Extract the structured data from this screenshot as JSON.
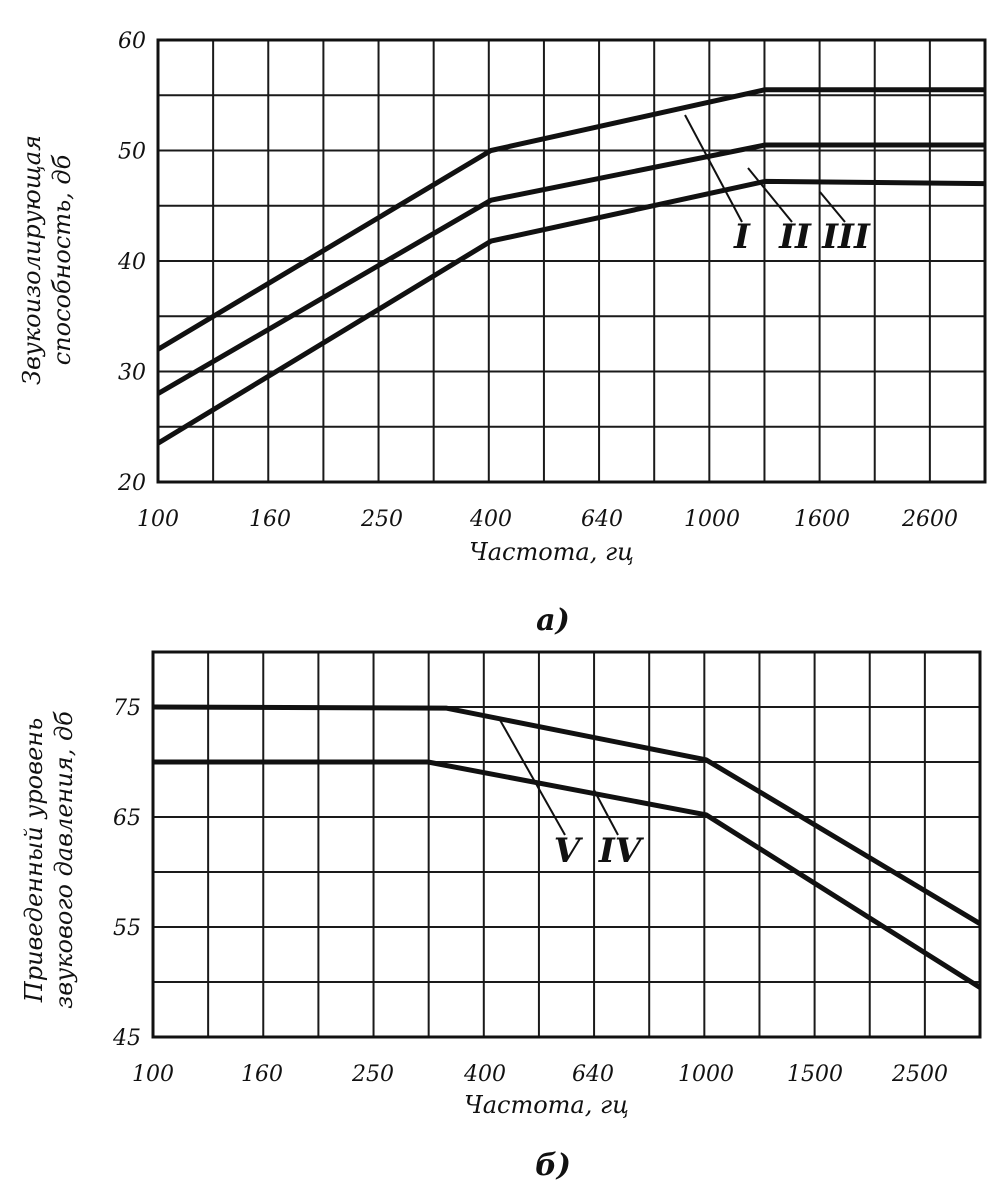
{
  "chart_data": [
    {
      "type": "line",
      "panel_label": "а)",
      "x_ticks": [
        "100",
        "160",
        "250",
        "400",
        "640",
        "1000",
        "1600",
        "2600"
      ],
      "y_ticks": [
        "20",
        "30",
        "40",
        "50",
        "60"
      ],
      "xlabel": "Частота, гц",
      "ylabel_lines": [
        "Звукоизолирующая",
        "способность, дб"
      ],
      "ylim": [
        20,
        60
      ],
      "grid": true,
      "series": [
        {
          "name": "I",
          "x": [
            100,
            400,
            1250,
            3200
          ],
          "values": [
            32,
            50,
            55.5,
            55.5
          ]
        },
        {
          "name": "II",
          "x": [
            100,
            400,
            1250,
            3200
          ],
          "values": [
            28,
            45.5,
            50.5,
            50.5
          ]
        },
        {
          "name": "III",
          "x": [
            100,
            400,
            1250,
            3200
          ],
          "values": [
            23.5,
            41.8,
            47.2,
            47
          ]
        }
      ]
    },
    {
      "type": "line",
      "panel_label": "б)",
      "x_ticks": [
        "100",
        "160",
        "250",
        "400",
        "640",
        "1000",
        "1500",
        "2500"
      ],
      "y_ticks": [
        "45",
        "55",
        "65",
        "75"
      ],
      "xlabel": "Частота, гц",
      "ylabel_lines": [
        "Приведенный уровень",
        "звукового давления, дб"
      ],
      "ylim": [
        45,
        80
      ],
      "grid": true,
      "series": [
        {
          "name": "V",
          "x": [
            100,
            350,
            1000,
            3000
          ],
          "values": [
            75,
            74.9,
            70.2,
            55.3
          ]
        },
        {
          "name": "IV",
          "x": [
            100,
            315,
            1000,
            3000
          ],
          "values": [
            70,
            70,
            65.2,
            49.5
          ]
        }
      ]
    }
  ],
  "colors": {
    "ink": "#111111",
    "grid": "#1a1a1a",
    "background": "#ffffff"
  }
}
